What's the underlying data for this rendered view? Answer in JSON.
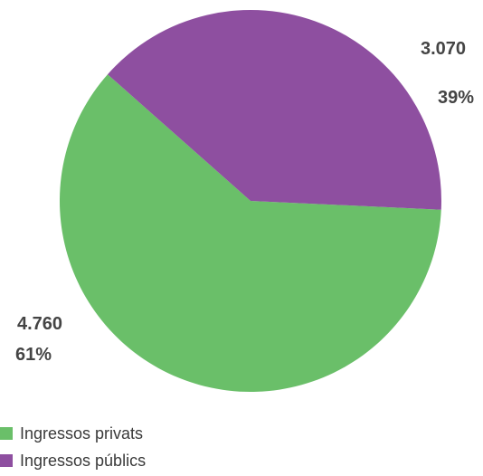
{
  "chart_data": {
    "type": "pie",
    "title": "",
    "categories": [
      "Ingressos privats",
      "Ingressos públics"
    ],
    "values": [
      4760,
      3070
    ],
    "value_labels": [
      "4.760",
      "3.070"
    ],
    "percent_labels": [
      "61%",
      "39%"
    ],
    "colors": [
      "#6abf69",
      "#8e4fa0"
    ],
    "start_angle_deg": -138.5,
    "direction": "clockwise-from-private",
    "legend_position": "bottom-left"
  }
}
